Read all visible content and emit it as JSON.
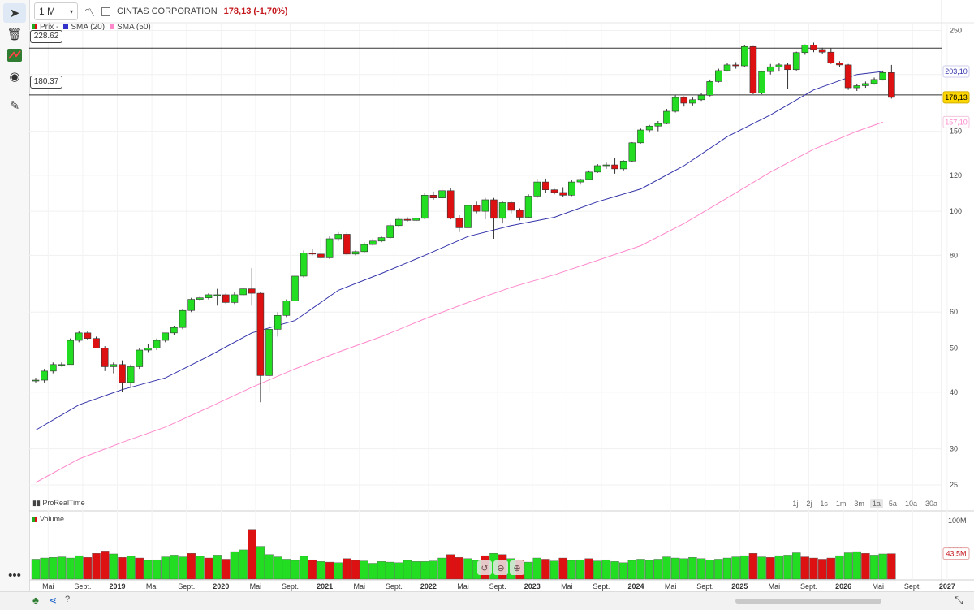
{
  "toolbar": {
    "icons": [
      "cursor-icon",
      "trash-icon",
      "chart-style-icon",
      "eye-icon",
      "pencil-icon"
    ],
    "more": "•••"
  },
  "header": {
    "timeframe": "1 M",
    "instrument": "CINTAS CORPORATION",
    "price_change": "178,13 (-1,70%)"
  },
  "legend": {
    "price": "Prix -",
    "sma20": "SMA (20)",
    "sma50": "SMA (50)"
  },
  "horizontal_lines": {
    "upper": "228.62",
    "lower": "180.37"
  },
  "price_tags": {
    "sma20": "203,10",
    "last": "178,13",
    "sma50": "157,10"
  },
  "brand": "ProRealTime",
  "periods": [
    "1j",
    "2j",
    "1s",
    "1m",
    "3m",
    "1a",
    "5a",
    "10a",
    "30a"
  ],
  "active_period": "1a",
  "volume_panel": {
    "title": "Volume",
    "ticks": [
      "100M",
      "50M"
    ],
    "last_tag": "43,5M"
  },
  "colors": {
    "up": "#22dd22",
    "down": "#dd1111",
    "sma20": "#3333aa",
    "sma50": "#ff88cc",
    "last": "#ffd700",
    "line": "#333333"
  },
  "chart_data": {
    "type": "candlestick",
    "y_scale": "log",
    "ylim": [
      22,
      260
    ],
    "y_ticks": [
      25,
      30,
      40,
      50,
      60,
      80,
      100,
      120,
      150,
      200,
      250
    ],
    "x_labels": [
      "Mai",
      "Sept.",
      "2019",
      "Mai",
      "Sept.",
      "2020",
      "Mai",
      "Sept.",
      "2021",
      "Mai",
      "Sept.",
      "2022",
      "Mai",
      "Sept.",
      "2023",
      "Mai",
      "Sept.",
      "2024",
      "Mai",
      "Sept.",
      "2025",
      "Mai",
      "Sept.",
      "2026",
      "Mai",
      "Sept.",
      "2027"
    ],
    "ohlc": [
      [
        42.5,
        43.0,
        42.0,
        42.5
      ],
      [
        42.5,
        45.0,
        42.0,
        44.5
      ],
      [
        44.5,
        46.5,
        44.0,
        46.0
      ],
      [
        46.0,
        46.5,
        45.5,
        46.0
      ],
      [
        46.0,
        52.5,
        46.0,
        52.0
      ],
      [
        52.0,
        54.5,
        51.5,
        54.0
      ],
      [
        54.0,
        54.5,
        52.0,
        52.5
      ],
      [
        52.5,
        53.0,
        50.0,
        50.0
      ],
      [
        50.0,
        50.5,
        44.5,
        45.5
      ],
      [
        45.5,
        46.5,
        44.0,
        46.0
      ],
      [
        46.0,
        47.0,
        40.0,
        42.0
      ],
      [
        42.0,
        46.0,
        41.0,
        45.5
      ],
      [
        45.5,
        50.0,
        45.0,
        49.5
      ],
      [
        49.5,
        51.0,
        49.0,
        50.0
      ],
      [
        50.0,
        52.5,
        49.5,
        52.0
      ],
      [
        52.0,
        54.0,
        51.5,
        54.0
      ],
      [
        54.0,
        56.0,
        53.5,
        55.5
      ],
      [
        55.5,
        61.0,
        55.0,
        60.5
      ],
      [
        60.5,
        64.5,
        60.0,
        64.0
      ],
      [
        64.0,
        65.0,
        63.5,
        64.5
      ],
      [
        64.5,
        66.0,
        64.0,
        65.5
      ],
      [
        65.5,
        67.5,
        62.0,
        65.5
      ],
      [
        65.5,
        66.0,
        62.5,
        63.0
      ],
      [
        63.0,
        66.5,
        62.5,
        65.5
      ],
      [
        65.5,
        68.0,
        65.0,
        67.5
      ],
      [
        67.5,
        75.0,
        62.0,
        66.0
      ],
      [
        66.0,
        66.5,
        38.0,
        43.5
      ],
      [
        43.5,
        57.0,
        40.0,
        55.0
      ],
      [
        55.0,
        60.0,
        53.0,
        59.0
      ],
      [
        59.0,
        64.0,
        58.5,
        63.5
      ],
      [
        63.5,
        72.5,
        63.0,
        72.0
      ],
      [
        72.0,
        82.0,
        71.5,
        81.0
      ],
      [
        81.0,
        82.5,
        80.0,
        80.5
      ],
      [
        80.5,
        87.5,
        78.5,
        79.0
      ],
      [
        79.0,
        88.0,
        78.5,
        87.0
      ],
      [
        87.0,
        90.0,
        86.0,
        89.0
      ],
      [
        89.0,
        90.0,
        80.0,
        80.5
      ],
      [
        80.5,
        82.0,
        80.0,
        81.5
      ],
      [
        81.5,
        85.5,
        81.0,
        84.5
      ],
      [
        84.5,
        87.0,
        84.0,
        86.0
      ],
      [
        86.0,
        88.0,
        85.5,
        87.5
      ],
      [
        87.5,
        94.0,
        87.0,
        93.0
      ],
      [
        93.0,
        97.0,
        92.5,
        96.0
      ],
      [
        96.0,
        97.0,
        95.0,
        95.5
      ],
      [
        95.5,
        97.0,
        95.0,
        96.5
      ],
      [
        96.5,
        110.0,
        96.0,
        108.5
      ],
      [
        108.5,
        110.5,
        106.0,
        107.0
      ],
      [
        107.0,
        113.0,
        106.0,
        111.0
      ],
      [
        111.0,
        112.5,
        96.0,
        96.5
      ],
      [
        96.5,
        98.0,
        90.0,
        92.0
      ],
      [
        92.0,
        104.0,
        91.5,
        103.0
      ],
      [
        103.0,
        105.0,
        99.0,
        100.0
      ],
      [
        100.0,
        107.0,
        96.0,
        106.0
      ],
      [
        106.0,
        107.0,
        87.0,
        96.5
      ],
      [
        96.5,
        105.0,
        94.0,
        104.5
      ],
      [
        104.5,
        105.0,
        99.0,
        100.5
      ],
      [
        100.5,
        101.5,
        95.5,
        97.0
      ],
      [
        97.0,
        109.0,
        96.5,
        108.0
      ],
      [
        108.0,
        118.0,
        107.0,
        116.0
      ],
      [
        116.0,
        118.0,
        110.0,
        111.5
      ],
      [
        111.5,
        112.0,
        109.0,
        110.0
      ],
      [
        110.0,
        113.0,
        107.5,
        108.5
      ],
      [
        108.5,
        117.0,
        108.0,
        116.0
      ],
      [
        116.0,
        118.0,
        114.5,
        117.5
      ],
      [
        117.5,
        123.0,
        117.0,
        122.0
      ],
      [
        122.0,
        127.0,
        121.5,
        126.0
      ],
      [
        126.0,
        128.0,
        124.0,
        126.5
      ],
      [
        126.5,
        131.0,
        121.0,
        124.0
      ],
      [
        124.0,
        129.5,
        123.0,
        129.0
      ],
      [
        129.0,
        142.0,
        128.5,
        141.5
      ],
      [
        141.5,
        152.0,
        141.0,
        151.0
      ],
      [
        151.0,
        155.0,
        149.0,
        154.0
      ],
      [
        154.0,
        158.0,
        150.0,
        156.0
      ],
      [
        156.0,
        168.0,
        155.5,
        166.0
      ],
      [
        166.0,
        180.0,
        165.0,
        178.0
      ],
      [
        178.0,
        179.0,
        170.0,
        173.0
      ],
      [
        173.0,
        178.0,
        171.0,
        176.0
      ],
      [
        176.0,
        182.0,
        175.0,
        180.0
      ],
      [
        180.0,
        195.0,
        179.0,
        193.0
      ],
      [
        193.0,
        206.0,
        192.0,
        204.0
      ],
      [
        204.0,
        212.0,
        203.0,
        210.0
      ],
      [
        210.0,
        213.0,
        206.0,
        209.0
      ],
      [
        209.0,
        232.0,
        207.5,
        230.5
      ],
      [
        230.5,
        231.0,
        181.0,
        182.0
      ],
      [
        182.0,
        204.0,
        181.0,
        203.0
      ],
      [
        203.0,
        211.0,
        200.0,
        208.0
      ],
      [
        208.0,
        212.0,
        203.0,
        210.0
      ],
      [
        210.0,
        212.0,
        186.0,
        205.0
      ],
      [
        205.0,
        224.5,
        204.0,
        223.5
      ],
      [
        223.5,
        233.0,
        221.0,
        232.0
      ],
      [
        232.0,
        235.0,
        224.0,
        227.0
      ],
      [
        227.0,
        229.0,
        222.0,
        224.0
      ],
      [
        224.0,
        228.5,
        211.0,
        212.0
      ],
      [
        212.0,
        214.0,
        208.0,
        210.0
      ],
      [
        210.0,
        211.0,
        185.0,
        187.0
      ],
      [
        187.0,
        191.0,
        184.0,
        189.0
      ],
      [
        189.0,
        193.0,
        187.0,
        191.0
      ],
      [
        191.0,
        197.0,
        190.0,
        195.0
      ],
      [
        195.0,
        204.0,
        194.0,
        202.0
      ],
      [
        202.0,
        210.0,
        177.0,
        178.13
      ]
    ],
    "sma20": [
      [
        0,
        33.0
      ],
      [
        5,
        37.5
      ],
      [
        10,
        40.5
      ],
      [
        15,
        43.0
      ],
      [
        20,
        48.0
      ],
      [
        25,
        54.0
      ],
      [
        30,
        57.5
      ],
      [
        35,
        67.0
      ],
      [
        40,
        73.0
      ],
      [
        45,
        80.0
      ],
      [
        50,
        88.0
      ],
      [
        55,
        93.0
      ],
      [
        60,
        97.0
      ],
      [
        65,
        105.0
      ],
      [
        70,
        112.0
      ],
      [
        75,
        126.0
      ],
      [
        80,
        146.0
      ],
      [
        85,
        163.0
      ],
      [
        90,
        185.0
      ],
      [
        95,
        200.0
      ],
      [
        98,
        203.1
      ]
    ],
    "sma50": [
      [
        0,
        25.3
      ],
      [
        5,
        28.5
      ],
      [
        10,
        31.0
      ],
      [
        15,
        33.5
      ],
      [
        20,
        37.0
      ],
      [
        25,
        41.0
      ],
      [
        30,
        45.0
      ],
      [
        35,
        49.0
      ],
      [
        40,
        53.0
      ],
      [
        45,
        58.0
      ],
      [
        50,
        63.0
      ],
      [
        55,
        68.0
      ],
      [
        60,
        72.5
      ],
      [
        65,
        78.0
      ],
      [
        70,
        84.0
      ],
      [
        75,
        94.0
      ],
      [
        80,
        107.0
      ],
      [
        85,
        122.0
      ],
      [
        90,
        137.0
      ],
      [
        95,
        150.0
      ],
      [
        98,
        157.1
      ]
    ],
    "volume": [
      [
        34,
        "up"
      ],
      [
        36,
        "up"
      ],
      [
        37,
        "up"
      ],
      [
        38,
        "up"
      ],
      [
        36,
        "up"
      ],
      [
        40,
        "up"
      ],
      [
        37,
        "down"
      ],
      [
        44,
        "down"
      ],
      [
        48,
        "down"
      ],
      [
        43,
        "up"
      ],
      [
        37,
        "down"
      ],
      [
        39,
        "up"
      ],
      [
        36,
        "down"
      ],
      [
        32,
        "up"
      ],
      [
        33,
        "up"
      ],
      [
        38,
        "up"
      ],
      [
        41,
        "up"
      ],
      [
        38,
        "up"
      ],
      [
        44,
        "down"
      ],
      [
        39,
        "up"
      ],
      [
        36,
        "down"
      ],
      [
        41,
        "up"
      ],
      [
        34,
        "down"
      ],
      [
        47,
        "up"
      ],
      [
        50,
        "up"
      ],
      [
        85,
        "down"
      ],
      [
        56,
        "up"
      ],
      [
        42,
        "up"
      ],
      [
        38,
        "up"
      ],
      [
        34,
        "up"
      ],
      [
        32,
        "up"
      ],
      [
        39,
        "up"
      ],
      [
        33,
        "down"
      ],
      [
        30,
        "up"
      ],
      [
        29,
        "down"
      ],
      [
        28,
        "up"
      ],
      [
        35,
        "down"
      ],
      [
        32,
        "down"
      ],
      [
        31,
        "up"
      ],
      [
        27,
        "up"
      ],
      [
        30,
        "up"
      ],
      [
        29,
        "up"
      ],
      [
        28,
        "up"
      ],
      [
        32,
        "up"
      ],
      [
        30,
        "up"
      ],
      [
        30,
        "up"
      ],
      [
        31,
        "up"
      ],
      [
        36,
        "up"
      ],
      [
        42,
        "down"
      ],
      [
        37,
        "down"
      ],
      [
        35,
        "up"
      ],
      [
        32,
        "up"
      ],
      [
        40,
        "down"
      ],
      [
        44,
        "up"
      ],
      [
        42,
        "down"
      ],
      [
        35,
        "up"
      ],
      [
        32,
        "down"
      ],
      [
        29,
        "up"
      ],
      [
        36,
        "up"
      ],
      [
        34,
        "down"
      ],
      [
        31,
        "up"
      ],
      [
        36,
        "down"
      ],
      [
        32,
        "up"
      ],
      [
        33,
        "up"
      ],
      [
        35,
        "down"
      ],
      [
        31,
        "up"
      ],
      [
        33,
        "up"
      ],
      [
        30,
        "up"
      ],
      [
        28,
        "up"
      ],
      [
        32,
        "up"
      ],
      [
        34,
        "up"
      ],
      [
        32,
        "up"
      ],
      [
        34,
        "up"
      ],
      [
        38,
        "up"
      ],
      [
        36,
        "up"
      ],
      [
        35,
        "up"
      ],
      [
        37,
        "up"
      ],
      [
        35,
        "up"
      ],
      [
        33,
        "up"
      ],
      [
        34,
        "up"
      ],
      [
        36,
        "up"
      ],
      [
        38,
        "up"
      ],
      [
        40,
        "up"
      ],
      [
        44,
        "down"
      ],
      [
        38,
        "up"
      ],
      [
        37,
        "down"
      ],
      [
        40,
        "up"
      ],
      [
        41,
        "up"
      ],
      [
        45,
        "up"
      ],
      [
        38,
        "down"
      ],
      [
        36,
        "down"
      ],
      [
        34,
        "down"
      ],
      [
        36,
        "down"
      ],
      [
        40,
        "up"
      ],
      [
        45,
        "up"
      ],
      [
        47,
        "up"
      ],
      [
        44,
        "down"
      ],
      [
        41,
        "up"
      ],
      [
        43,
        "up"
      ],
      [
        43.5,
        "down"
      ]
    ]
  }
}
